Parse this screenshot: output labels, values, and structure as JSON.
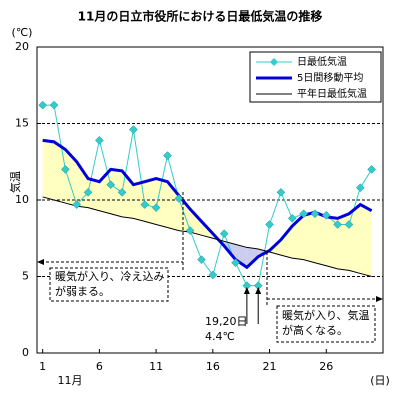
{
  "chart_data": {
    "type": "line",
    "title": "11月の日立市役所における日最低気温の推移",
    "ylabel": "気温",
    "y_unit": "(℃)",
    "x_sublabel": "11月",
    "x_unit": "(日)",
    "x": [
      1,
      2,
      3,
      4,
      5,
      6,
      7,
      8,
      9,
      10,
      11,
      12,
      13,
      14,
      15,
      16,
      17,
      18,
      19,
      20,
      21,
      22,
      23,
      24,
      25,
      26,
      27,
      28,
      29,
      30
    ],
    "xlim": [
      0.5,
      31
    ],
    "xticks": [
      1,
      6,
      11,
      16,
      21,
      26
    ],
    "ylim": [
      0,
      20
    ],
    "yticks": [
      0,
      5,
      10,
      15,
      20
    ],
    "grid": true,
    "legend": "upper right",
    "series": [
      {
        "name": "日最低気温",
        "color": "#33cccc",
        "values": [
          16.2,
          16.2,
          12.0,
          9.7,
          10.5,
          13.9,
          11.0,
          10.5,
          14.6,
          9.7,
          9.5,
          12.9,
          10.1,
          8.0,
          6.1,
          5.1,
          7.8,
          5.9,
          4.4,
          4.4,
          8.4,
          10.5,
          8.8,
          9.1,
          9.1,
          9.0,
          8.4,
          8.4,
          10.8,
          12.0
        ]
      },
      {
        "name": "5日間移動平均",
        "color": "#0000dd",
        "values": [
          13.9,
          13.8,
          13.3,
          12.5,
          11.4,
          11.2,
          12.0,
          11.9,
          11.0,
          11.2,
          11.4,
          11.2,
          10.3,
          9.4,
          8.6,
          7.8,
          7.0,
          6.1,
          5.6,
          6.3,
          6.7,
          7.4,
          8.3,
          9.0,
          9.2,
          8.9,
          8.8,
          9.1,
          9.7,
          9.3
        ]
      },
      {
        "name": "平年日最低気温",
        "color": "#000000",
        "values": [
          10.2,
          10.0,
          9.8,
          9.6,
          9.5,
          9.3,
          9.1,
          8.9,
          8.8,
          8.6,
          8.4,
          8.2,
          8.0,
          7.9,
          7.7,
          7.5,
          7.3,
          7.1,
          6.9,
          6.8,
          6.6,
          6.4,
          6.2,
          6.1,
          5.9,
          5.7,
          5.5,
          5.4,
          5.2,
          5.0
        ]
      }
    ],
    "annotations": [
      {
        "lines": [
          "暖気が入り、冷え込み",
          "が弱まる。"
        ]
      },
      {
        "lines": [
          "19,20日",
          "4.4℃"
        ]
      },
      {
        "lines": [
          "暖気が入り、気温",
          "が高くなる。"
        ]
      }
    ]
  }
}
